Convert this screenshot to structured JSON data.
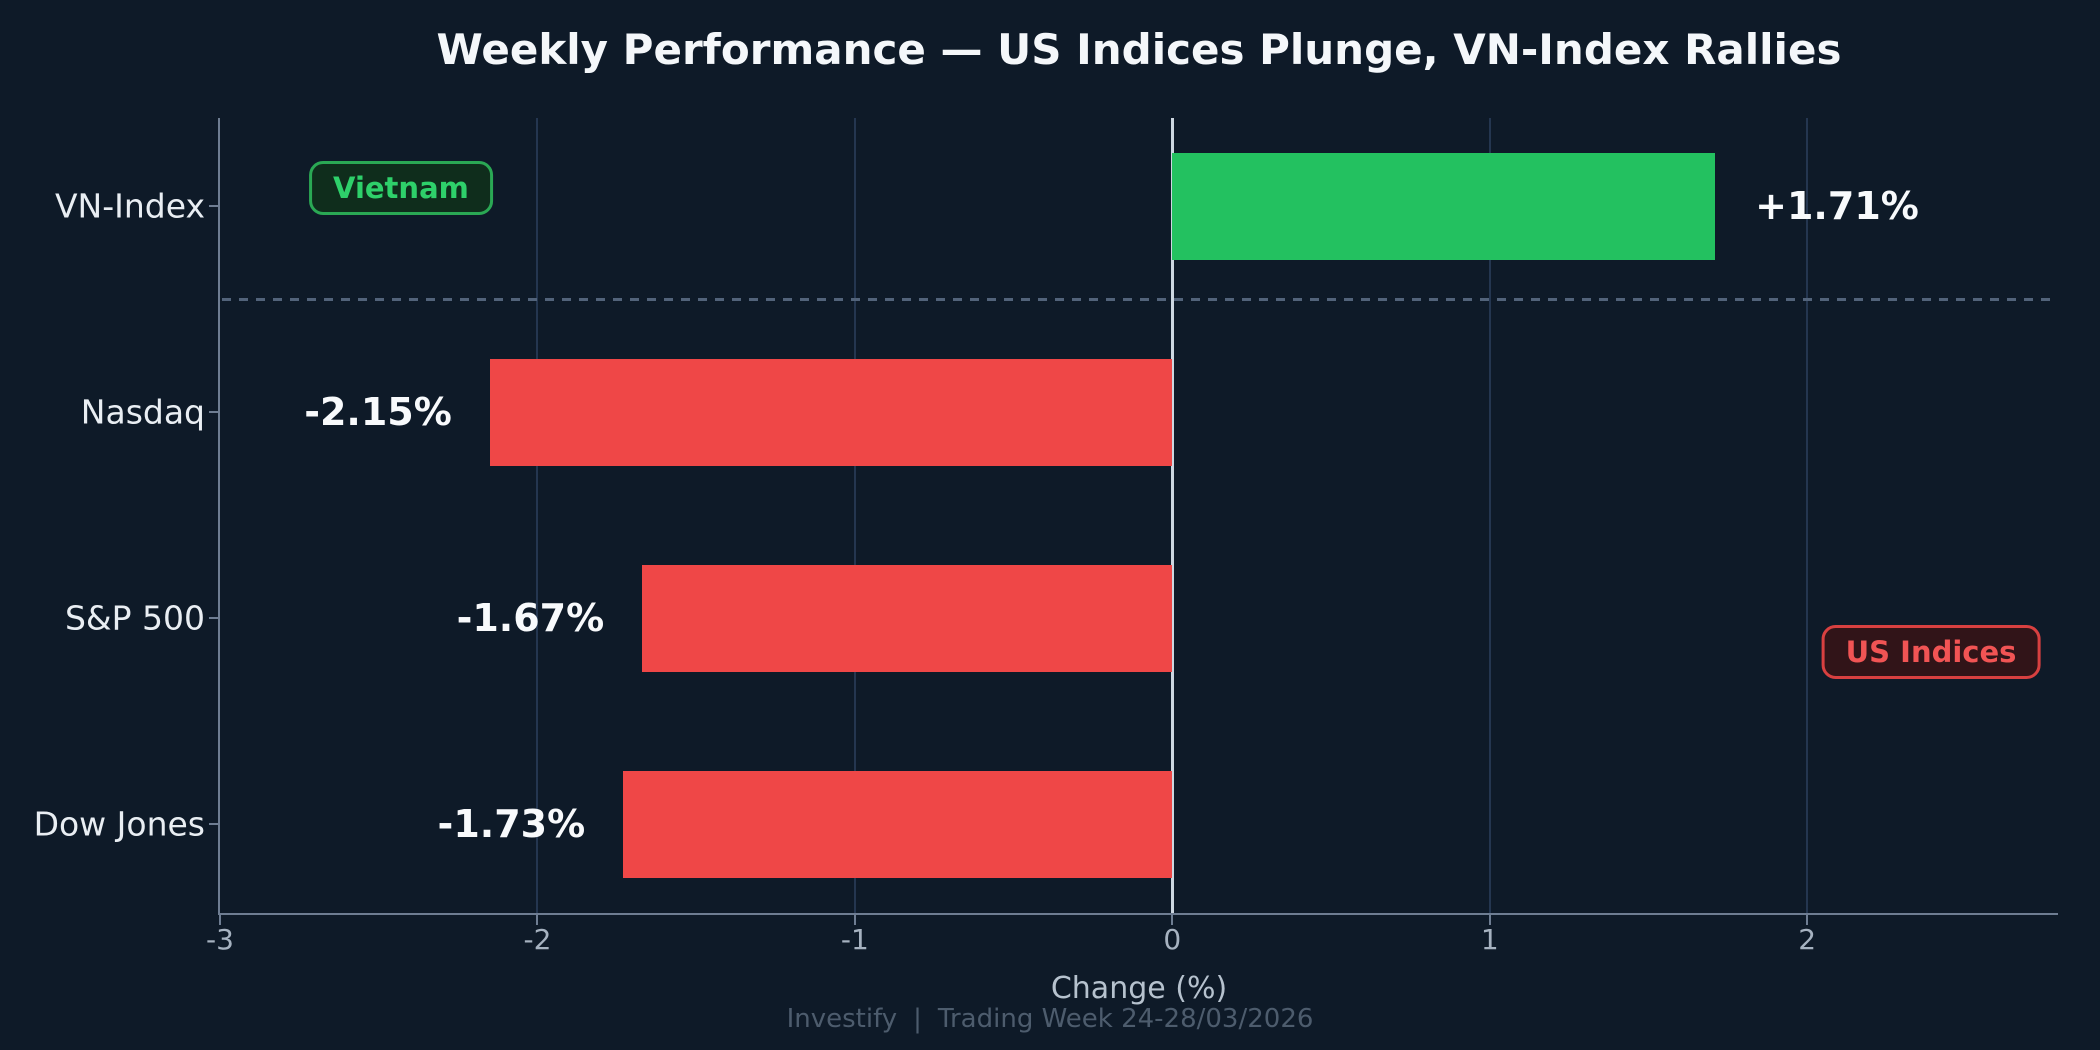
{
  "header": {
    "title": "Weekly Performance — US Indices Plunge, VN-Index Rallies"
  },
  "chart_data": {
    "type": "bar",
    "orientation": "horizontal",
    "title": "Weekly Performance — US Indices Plunge, VN-Index Rallies",
    "categories": [
      "VN-Index",
      "Nasdaq",
      "S&P 500",
      "Dow Jones"
    ],
    "values": [
      1.71,
      -2.15,
      -1.67,
      -1.73
    ],
    "value_labels": [
      "+1.71%",
      "-2.15%",
      "-1.67%",
      "-1.73%"
    ],
    "bar_colors": [
      "#23c160",
      "#ef4747",
      "#ef4747",
      "#ef4747"
    ],
    "positive_color": "#23c160",
    "negative_color": "#ef4747",
    "xlabel": "Change (%)",
    "xticks": [
      -3,
      -2,
      -1,
      0,
      1,
      2
    ],
    "xtick_labels": [
      "-3",
      "-2",
      "-1",
      "0",
      "1",
      "2"
    ],
    "xlim": [
      -3,
      2.79
    ],
    "grid": "vertical",
    "zero_line": true,
    "zero_line_color": "#cdd7e1",
    "gridline_color": "#243650",
    "separator": {
      "after_category_index": 0,
      "style": "dashed",
      "color": "#52637a"
    },
    "annotations": [
      {
        "label": "Vietnam",
        "x": -2.43,
        "row": 0,
        "dy": -18,
        "text_color": "#2ed06a",
        "border_color": "#2aa854",
        "bg_color": "#0f2d1c"
      },
      {
        "label": "US Indices",
        "x": 2.39,
        "row": 2,
        "dy": 34,
        "text_color": "#f15454",
        "border_color": "#d84040",
        "bg_color": "#311418"
      }
    ]
  },
  "footer": {
    "brand": "Investify",
    "separator": "|",
    "subtitle": "Trading Week 24-28/03/2026"
  }
}
